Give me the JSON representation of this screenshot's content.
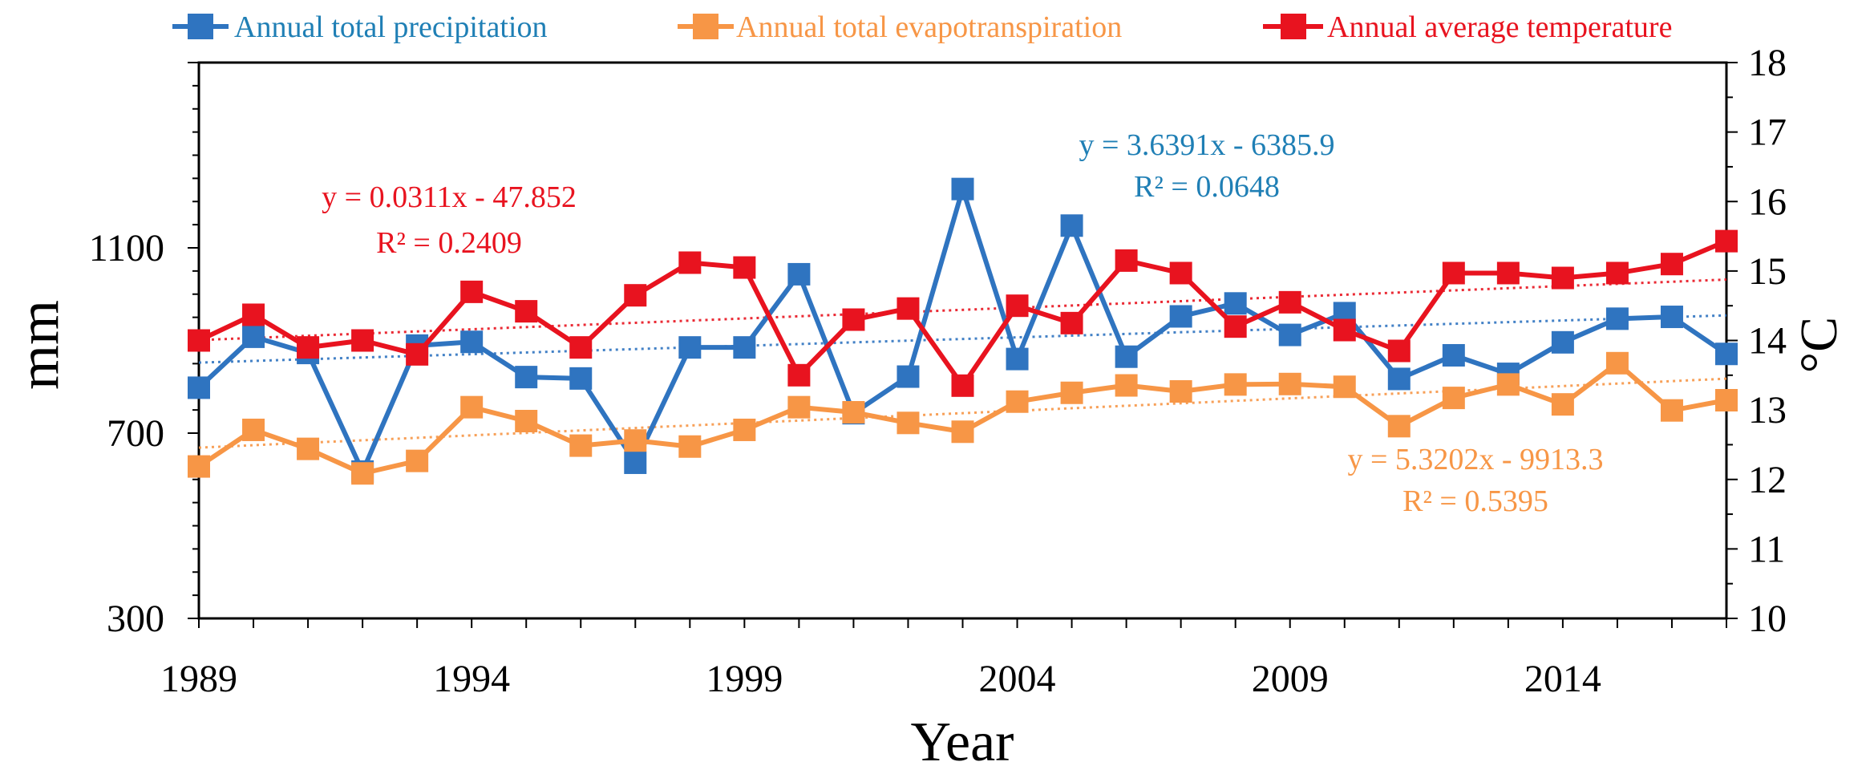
{
  "chart_data": {
    "type": "line",
    "x": [
      1989,
      1990,
      1991,
      1992,
      1993,
      1994,
      1995,
      1996,
      1997,
      1998,
      1999,
      2000,
      2001,
      2002,
      2003,
      2004,
      2005,
      2006,
      2007,
      2008,
      2009,
      2010,
      2011,
      2012,
      2013,
      2014,
      2015,
      2016,
      2017
    ],
    "xlabel": "Year",
    "ylabel": "mm",
    "y2label": "°C",
    "xlim": [
      1989,
      2017
    ],
    "ylim": [
      300,
      1500
    ],
    "y2lim": [
      10,
      18
    ],
    "xticks": [
      "1989",
      "1994",
      "1999",
      "2004",
      "2009",
      "2014"
    ],
    "xtick_values": [
      1989,
      1994,
      1999,
      2004,
      2009,
      2014
    ],
    "yticks": [
      "300",
      "700",
      "1100"
    ],
    "ytick_values": [
      300,
      700,
      1100
    ],
    "y2ticks": [
      "10",
      "11",
      "12",
      "13",
      "14",
      "15",
      "16",
      "17",
      "18"
    ],
    "y2tick_values": [
      10,
      11,
      12,
      13,
      14,
      15,
      16,
      17,
      18
    ],
    "series": [
      {
        "name": "Annual total precipitation",
        "color": "#2f74c0",
        "axis": "left",
        "values": [
          798,
          908,
          873,
          617,
          889,
          897,
          821,
          818,
          636,
          885,
          885,
          1043,
          743,
          822,
          1227,
          860,
          1148,
          865,
          952,
          980,
          912,
          959,
          817,
          868,
          828,
          896,
          947,
          951,
          871
        ],
        "trend": {
          "slope": 3.6391,
          "intercept": -6385.9,
          "color": "#2f74c0"
        }
      },
      {
        "name": "Annual total evapotranspiration",
        "color": "#f79646",
        "axis": "left",
        "values": [
          628,
          707,
          666,
          613,
          640,
          756,
          726,
          673,
          684,
          671,
          707,
          756,
          745,
          722,
          703,
          768,
          787,
          803,
          790,
          805,
          806,
          800,
          715,
          776,
          805,
          762,
          851,
          749,
          771
        ],
        "trend": {
          "slope": 5.3202,
          "intercept": -9913.3,
          "color": "#f79646"
        }
      },
      {
        "name": "Annual average temperature",
        "color": "#e8131f",
        "axis": "right",
        "values": [
          14.0,
          14.37,
          13.9,
          14.0,
          13.8,
          14.7,
          14.42,
          13.9,
          14.65,
          15.12,
          15.05,
          13.5,
          14.3,
          14.46,
          13.35,
          14.5,
          14.25,
          15.15,
          14.97,
          14.2,
          14.55,
          14.15,
          13.85,
          14.97,
          14.97,
          14.9,
          14.97,
          15.1,
          15.43
        ],
        "trend": {
          "slope": 0.0311,
          "intercept": -47.852,
          "color": "#e8131f"
        }
      }
    ],
    "annotations": [
      {
        "eq": "y = 0.0311x - 47.852",
        "r2": "R² = 0.2409",
        "color": "#e8131f"
      },
      {
        "eq": "y = 3.6391x - 6385.9",
        "r2": "R² = 0.0648",
        "color": "#1f7fb5"
      },
      {
        "eq": "y = 5.3202x - 9913.3",
        "r2": "R² = 0.5395",
        "color": "#f79646"
      }
    ]
  }
}
